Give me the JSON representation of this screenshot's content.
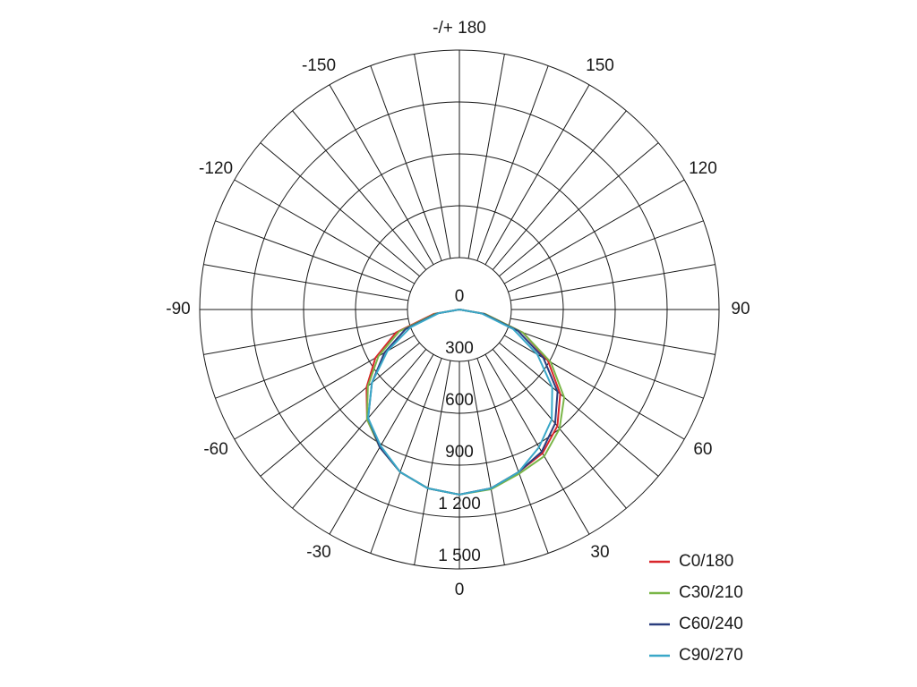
{
  "chart_data": {
    "type": "polar",
    "angle_direction": "zero-down-positive-right",
    "rlim": [
      0,
      1500
    ],
    "rticks": [
      0,
      300,
      600,
      900,
      {
        "value": 1200,
        "label": "1 200"
      },
      {
        "value": 1500,
        "label": "1 500"
      }
    ],
    "angle_ticks": [
      0,
      30,
      60,
      90,
      120,
      150,
      {
        "value": 180,
        "label": "-/+ 180"
      },
      -150,
      -120,
      -90,
      -60,
      -30
    ],
    "angle_grid_step": 10,
    "legend": "bottom-right",
    "x": [
      -90,
      -80,
      -70,
      -60,
      -50,
      -40,
      -30,
      -20,
      -10,
      0,
      10,
      20,
      30,
      40,
      50,
      60,
      70,
      80,
      90
    ],
    "series": [
      {
        "name": "C0/180",
        "color": "#d9262b",
        "values": [
          0,
          150,
          390,
          560,
          700,
          830,
          920,
          1000,
          1050,
          1070,
          1050,
          1000,
          960,
          880,
          760,
          590,
          390,
          150,
          0
        ]
      },
      {
        "name": "C30/210",
        "color": "#7ab648",
        "values": [
          0,
          140,
          370,
          540,
          690,
          830,
          920,
          1000,
          1050,
          1070,
          1055,
          1010,
          980,
          900,
          790,
          610,
          390,
          150,
          0
        ]
      },
      {
        "name": "C60/240",
        "color": "#2a3e7e",
        "values": [
          0,
          130,
          330,
          500,
          660,
          820,
          920,
          1000,
          1050,
          1070,
          1050,
          1000,
          950,
          860,
          740,
          560,
          360,
          140,
          0
        ]
      },
      {
        "name": "C90/270",
        "color": "#3aa8c8",
        "values": [
          0,
          120,
          300,
          480,
          660,
          820,
          910,
          1000,
          1050,
          1070,
          1050,
          1000,
          920,
          830,
          700,
          520,
          330,
          130,
          0
        ]
      }
    ]
  }
}
